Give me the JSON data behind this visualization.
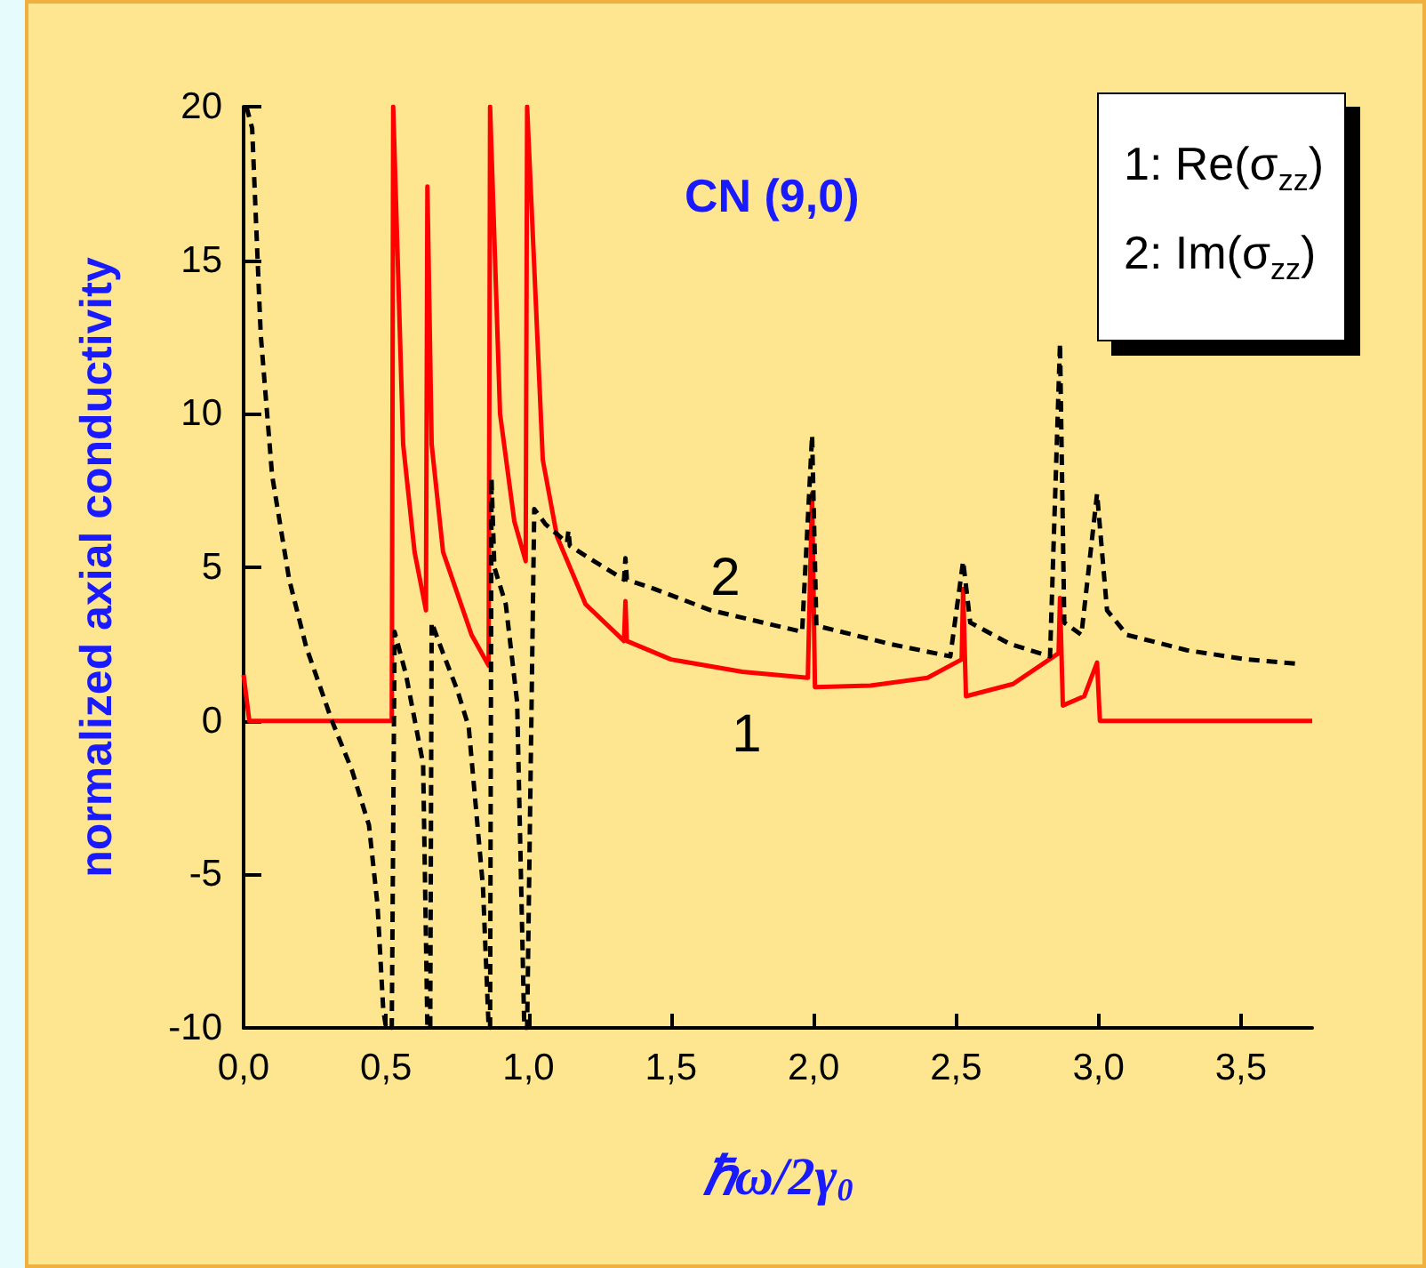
{
  "chart_data": {
    "type": "line",
    "title": "CN (9,0)",
    "xlabel": "ℏω/2γ$_{0}$",
    "ylabel": "normalized axial conductivity",
    "xlim": [
      0,
      3.75
    ],
    "ylim": [
      -10,
      20
    ],
    "xticks": [
      {
        "value": 0,
        "label": "0,0"
      },
      {
        "value": 0.5,
        "label": "0,5"
      },
      {
        "value": 1,
        "label": "1,0"
      },
      {
        "value": 1.5,
        "label": "1,5"
      },
      {
        "value": 2,
        "label": "2,0"
      },
      {
        "value": 2.5,
        "label": "2,5"
      },
      {
        "value": 3,
        "label": "3,0"
      },
      {
        "value": 3.5,
        "label": "3,5"
      }
    ],
    "yticks": [
      -10,
      -5,
      0,
      5,
      10,
      15,
      20
    ],
    "grid": false,
    "marker": "none",
    "annotations": [
      "1: Re(σ$_{zz}$)",
      "2: Im(σ$_{zz}$)",
      "1",
      "2"
    ],
    "series": [
      {
        "color": "#ff0000",
        "line_style": "solid",
        "x": [
          0,
          0.02,
          0.52,
          0.525,
          0.56,
          0.6,
          0.64,
          0.645,
          0.66,
          0.7,
          0.8,
          0.86,
          0.865,
          0.9,
          0.95,
          0.99,
          0.995,
          1.05,
          1.1,
          1.2,
          1.335,
          1.34,
          1.345,
          1.5,
          1.75,
          1.98,
          1.995,
          2.005,
          2.2,
          2.4,
          2.52,
          2.525,
          2.535,
          2.7,
          2.86,
          2.865,
          2.875,
          2.95,
          2.995,
          3.005,
          3.75
        ],
        "values": [
          1.5,
          0,
          0,
          20,
          9,
          5.5,
          3.6,
          17.4,
          9,
          5.5,
          2.8,
          1.8,
          20,
          10,
          6.5,
          5.2,
          20,
          8.5,
          6,
          3.8,
          2.6,
          3.9,
          2.6,
          2,
          1.6,
          1.4,
          7.4,
          1.1,
          1.15,
          1.4,
          2,
          4.3,
          0.8,
          1.2,
          2.2,
          4,
          0.5,
          0.8,
          1.9,
          0,
          0
        ]
      },
      {
        "color": "#000000",
        "line_style": "dashed",
        "x": [
          0.01,
          0.03,
          0.06,
          0.1,
          0.16,
          0.22,
          0.31,
          0.38,
          0.44,
          0.47,
          0.49,
          0.5,
          0.52,
          0.53,
          0.57,
          0.63,
          0.645,
          0.655,
          0.66,
          0.7,
          0.75,
          0.79,
          0.84,
          0.86,
          0.865,
          0.87,
          0.88,
          0.92,
          0.96,
          0.985,
          0.995,
          1.02,
          1.06,
          1.135,
          1.14,
          1.145,
          1.23,
          1.335,
          1.34,
          1.345,
          1.44,
          1.64,
          1.96,
          1.995,
          2.01,
          2.27,
          2.48,
          2.525,
          2.55,
          2.69,
          2.83,
          2.865,
          2.88,
          2.94,
          2.995,
          3.03,
          3.1,
          3.31,
          3.52,
          3.71
        ],
        "values": [
          20,
          19.3,
          12.6,
          8,
          4.6,
          2.4,
          0,
          -1.6,
          -3.4,
          -6,
          -9.4,
          -10,
          -10,
          2.9,
          1.5,
          -1.4,
          -10,
          -10,
          3.2,
          2.2,
          1,
          -0.2,
          -5.4,
          -10,
          -10,
          7.9,
          5,
          3.8,
          0.6,
          -10,
          -10,
          6.9,
          6.4,
          5.8,
          6.2,
          5.7,
          5.2,
          4.6,
          5.3,
          4.6,
          4.3,
          3.6,
          2.9,
          9.3,
          3.1,
          2.5,
          2.1,
          5.2,
          3.2,
          2.5,
          2.1,
          12.3,
          3.2,
          2.8,
          7.4,
          3.6,
          2.8,
          2.3,
          2,
          1.85
        ]
      }
    ]
  }
}
